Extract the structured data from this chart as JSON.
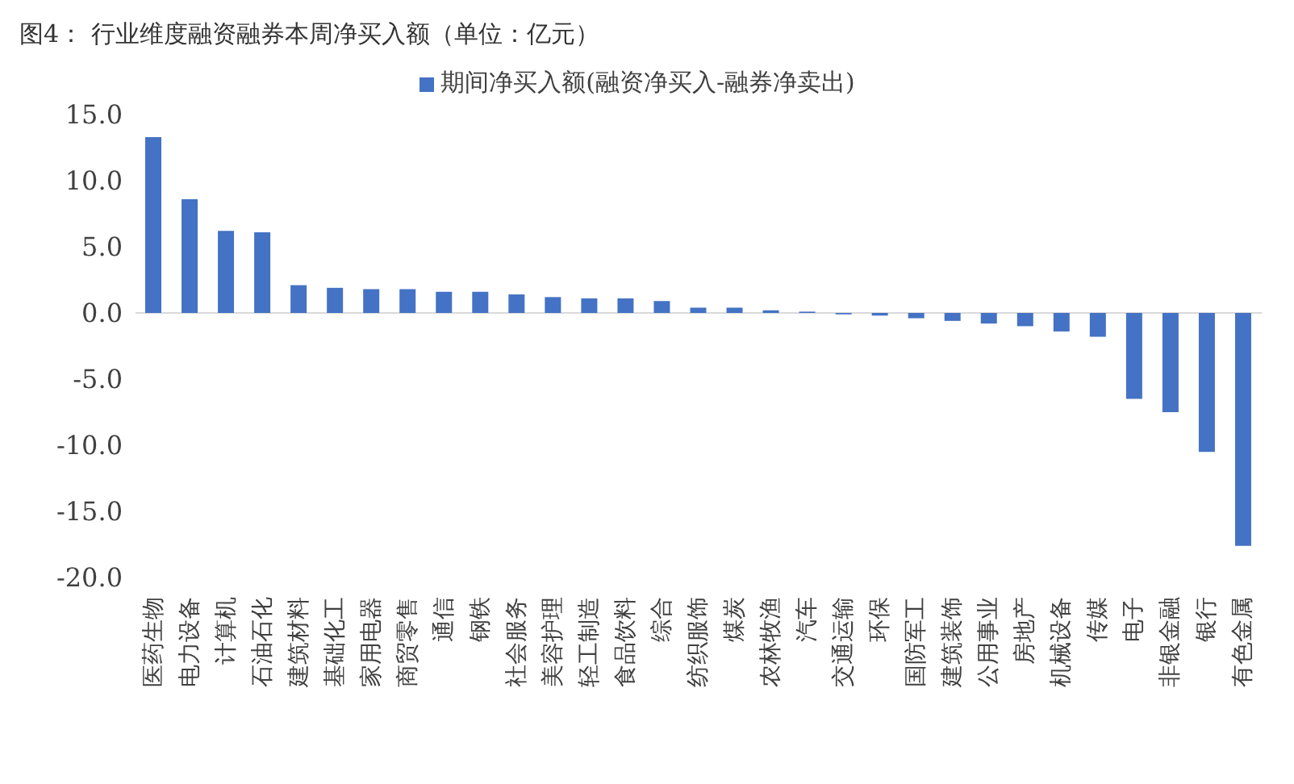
{
  "chart_data": {
    "type": "bar",
    "title": "图4：  行业维度融资融券本周净买入额（单位：亿元）",
    "categories": [
      "医药生物",
      "电力设备",
      "计算机",
      "石油石化",
      "建筑材料",
      "基础化工",
      "家用电器",
      "商贸零售",
      "通信",
      "钢铁",
      "社会服务",
      "美容护理",
      "轻工制造",
      "食品饮料",
      "综合",
      "纺织服饰",
      "煤炭",
      "农林牧渔",
      "汽车",
      "交通运输",
      "环保",
      "国防军工",
      "建筑装饰",
      "公用事业",
      "房地产",
      "机械设备",
      "传媒",
      "电子",
      "非银金融",
      "银行",
      "有色金属"
    ],
    "series": [
      {
        "name": "期间净买入额(融资净买入-融券净卖出)",
        "color": "#4472c4",
        "values": [
          13.3,
          8.6,
          6.2,
          6.1,
          2.1,
          1.9,
          1.8,
          1.8,
          1.6,
          1.6,
          1.4,
          1.2,
          1.1,
          1.1,
          0.9,
          0.4,
          0.4,
          0.2,
          0.1,
          -0.1,
          -0.2,
          -0.4,
          -0.6,
          -0.8,
          -1.0,
          -1.4,
          -1.8,
          -6.5,
          -7.5,
          -10.5,
          -17.6
        ]
      }
    ],
    "ylim": [
      -20,
      15
    ],
    "yticks": [
      {
        "value": -20,
        "label": "-20.0"
      },
      {
        "value": -15,
        "label": "-15.0"
      },
      {
        "value": -10,
        "label": "-10.0"
      },
      {
        "value": -5,
        "label": "-5.0"
      },
      {
        "value": 0,
        "label": "0.0"
      },
      {
        "value": 5,
        "label": "5.0"
      },
      {
        "value": 10,
        "label": "10.0"
      },
      {
        "value": 15,
        "label": "15.0"
      }
    ],
    "legend": "top"
  }
}
